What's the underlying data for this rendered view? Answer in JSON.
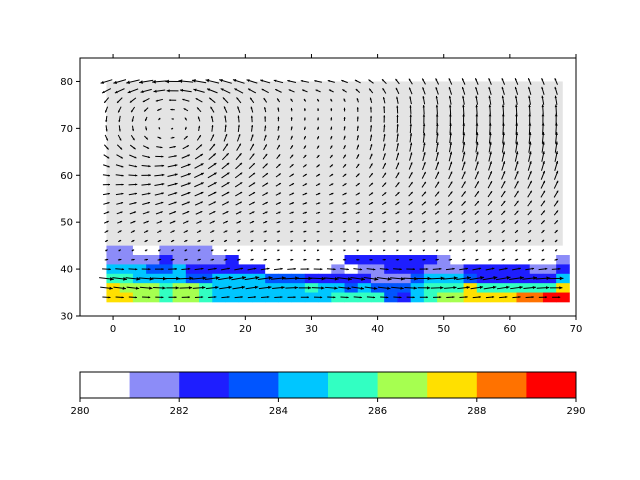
{
  "chart_data": [
    {
      "type": "heatmap",
      "title": "",
      "xlabel": "",
      "ylabel": "",
      "xlim": [
        -5,
        70
      ],
      "ylim": [
        30,
        85
      ],
      "grid": false,
      "x_ticks": [
        "0",
        "10",
        "20",
        "30",
        "40",
        "50",
        "60",
        "70"
      ],
      "y_ticks": [
        "30",
        "40",
        "50",
        "60",
        "70",
        "80"
      ],
      "cell_size": 2,
      "masked_color": "#e4e4e4",
      "masked_region": {
        "x": [
          -1,
          68
        ],
        "y": [
          43,
          80
        ]
      },
      "cell_columns_x_start": -1,
      "cell_columns_x_end": 67,
      "cell_rows_y_values": [
        44,
        42,
        40,
        38,
        36,
        34
      ],
      "cell_values": [
        [
          281.8,
          281.8,
          280.6,
          280.6,
          281.4,
          281.6,
          281.6,
          281.9,
          280.5,
          280.5,
          280.5,
          280.5,
          280.5,
          280.5,
          280.5,
          280.5,
          280.5,
          280.5,
          280.5,
          280.5,
          280.5,
          280.5,
          280.5,
          280.5,
          280.5,
          280.5,
          280.5,
          280.5,
          280.5,
          280.5,
          280.5,
          280.5,
          280.5,
          280.5,
          280.5
        ],
        [
          281.9,
          281.9,
          281.9,
          281.4,
          282.6,
          281.6,
          281.9,
          281.9,
          281.9,
          282.3,
          280.5,
          280.5,
          280.5,
          280.5,
          280.5,
          280.5,
          280.5,
          280.5,
          282.5,
          282.5,
          282.5,
          282.5,
          282.5,
          282.5,
          282.5,
          281.2,
          280.5,
          280.5,
          280.5,
          280.5,
          280.5,
          280.5,
          280.5,
          280.5,
          281.4
        ],
        [
          284.5,
          284.5,
          284.5,
          283.5,
          283.5,
          284.5,
          282.6,
          282.6,
          282.6,
          282.6,
          282.4,
          282.6,
          280.5,
          280.5,
          280.5,
          280.5,
          280.5,
          281.4,
          280.5,
          281.4,
          281.4,
          282.6,
          282.6,
          282.6,
          281.4,
          281.6,
          281.9,
          282.4,
          282.6,
          282.6,
          282.6,
          282.6,
          281.4,
          281.4,
          282.6
        ],
        [
          285.5,
          285.5,
          284.5,
          284.5,
          284.5,
          284.5,
          283.4,
          283.6,
          284.5,
          284.5,
          284.5,
          284.5,
          283.6,
          283.6,
          283.6,
          282.6,
          282.6,
          282.6,
          282.6,
          282.6,
          281.9,
          281.6,
          281.6,
          283.5,
          284.5,
          284.5,
          284.5,
          283.5,
          282.6,
          282.6,
          282.6,
          282.6,
          282.6,
          282.6,
          284.5
        ],
        [
          287.5,
          286.6,
          286.4,
          286.4,
          285.6,
          286.6,
          286.6,
          285.6,
          284.5,
          284.5,
          284.5,
          284.5,
          284.5,
          284.6,
          284.6,
          285.5,
          284.5,
          284.5,
          283.6,
          284.6,
          283.6,
          283.6,
          283.6,
          284.5,
          285.5,
          285.4,
          285.5,
          287.4,
          285.5,
          285.5,
          285.5,
          285.5,
          285.5,
          285.5,
          287.4
        ],
        [
          287.4,
          287.4,
          286.4,
          286.4,
          285.6,
          286.4,
          286.4,
          285.6,
          284.5,
          284.5,
          284.5,
          284.5,
          284.5,
          284.5,
          284.5,
          284.5,
          284.5,
          285.6,
          285.6,
          285.5,
          285.5,
          283.4,
          282.6,
          284.5,
          285.5,
          286.5,
          286.5,
          287.4,
          287.4,
          287.4,
          287.4,
          288.5,
          288.4,
          289.5,
          289.6
        ]
      ],
      "vector_field": {
        "x_range": [
          -1,
          67
        ],
        "y_range": [
          34,
          80
        ],
        "spacing": 2,
        "description_keys": [
          "westerly jet near y 35-40",
          "anticyclonic gyre near x 10 y 70",
          "southerly flow at right y 55-80"
        ]
      }
    },
    {
      "type": "heatmap",
      "title": "",
      "role": "colorbar",
      "orientation": "horizontal",
      "vmin": 280,
      "vmax": 290,
      "x_ticks": [
        "280",
        "282",
        "284",
        "286",
        "288",
        "290"
      ],
      "boundaries": [
        280,
        281,
        282,
        283,
        284,
        285,
        286,
        287,
        288,
        289,
        290
      ],
      "colors": [
        "#ffffff",
        "#8c8cf8",
        "#1e1eff",
        "#0055ff",
        "#00c6ff",
        "#32ffc2",
        "#a6ff50",
        "#ffe000",
        "#ff7200",
        "#ff0000"
      ]
    }
  ]
}
